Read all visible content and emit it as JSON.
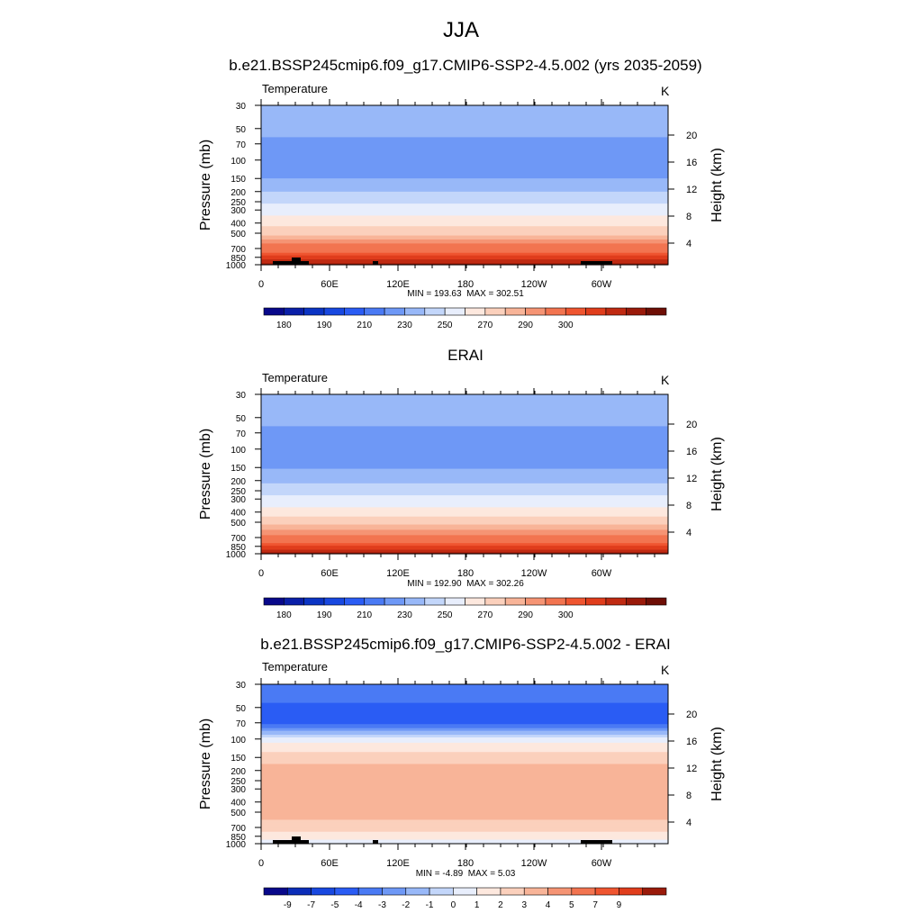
{
  "figure": {
    "title": "JJA"
  },
  "chart_data": [
    {
      "type": "heatmap",
      "title": "b.e21.BSSP245cmip6.f09_g17.CMIP6-SSP2-4.5.002 (yrs 2035-2059)",
      "variable": "Temperature",
      "units": "K",
      "xlabel": "",
      "ylabel": "Pressure (mb)",
      "y2label": "Height (km)",
      "x_ticks": [
        "0",
        "60E",
        "120E",
        "180",
        "120W",
        "60W"
      ],
      "y_ticks": [
        "30",
        "50",
        "70",
        "100",
        "150",
        "200",
        "250",
        "300",
        "400",
        "500",
        "700",
        "850",
        "1000"
      ],
      "y2_ticks": [
        "4",
        "8",
        "12",
        "16",
        "20"
      ],
      "y_scale": "log",
      "ylim": [
        1000,
        30
      ],
      "min_label": "MIN = 193.63",
      "max_label": "MAX = 302.51",
      "colorbar_labels": [
        "180",
        "190",
        "210",
        "230",
        "250",
        "270",
        "290",
        "300"
      ],
      "profile": {
        "pressure": [
          30,
          40,
          50,
          70,
          100,
          150,
          200,
          250,
          300,
          400,
          500,
          700,
          850,
          1000
        ],
        "value": [
          218,
          216,
          213,
          208,
          204,
          210,
          220,
          228,
          235,
          246,
          258,
          275,
          287,
          297
        ]
      },
      "terrain": true
    },
    {
      "type": "heatmap",
      "title": "ERAI",
      "variable": "Temperature",
      "units": "K",
      "xlabel": "",
      "ylabel": "Pressure (mb)",
      "y2label": "Height (km)",
      "x_ticks": [
        "0",
        "60E",
        "120E",
        "180",
        "120W",
        "60W"
      ],
      "y_ticks": [
        "30",
        "50",
        "70",
        "100",
        "150",
        "200",
        "250",
        "300",
        "400",
        "500",
        "700",
        "850",
        "1000"
      ],
      "y2_ticks": [
        "4",
        "8",
        "12",
        "16",
        "20"
      ],
      "y_scale": "log",
      "ylim": [
        1000,
        30
      ],
      "min_label": "MIN = 192.90",
      "max_label": "MAX = 302.26",
      "colorbar_labels": [
        "180",
        "190",
        "210",
        "230",
        "250",
        "270",
        "290",
        "300"
      ],
      "profile": {
        "pressure": [
          30,
          40,
          50,
          70,
          100,
          150,
          200,
          250,
          300,
          400,
          500,
          700,
          850,
          1000
        ],
        "value": [
          218,
          216,
          213,
          208,
          204,
          209,
          218,
          226,
          233,
          245,
          257,
          273,
          285,
          296
        ]
      },
      "terrain": false
    },
    {
      "type": "heatmap",
      "title": "b.e21.BSSP245cmip6.f09_g17.CMIP6-SSP2-4.5.002 - ERAI",
      "variable": "Temperature",
      "units": "K",
      "xlabel": "",
      "ylabel": "Pressure (mb)",
      "y2label": "Height (km)",
      "x_ticks": [
        "0",
        "60E",
        "120E",
        "180",
        "120W",
        "60W"
      ],
      "y_ticks": [
        "30",
        "50",
        "70",
        "100",
        "150",
        "200",
        "250",
        "300",
        "400",
        "500",
        "700",
        "850",
        "1000"
      ],
      "y2_ticks": [
        "4",
        "8",
        "12",
        "16",
        "20"
      ],
      "y_scale": "log",
      "ylim": [
        1000,
        30
      ],
      "min_label": "MIN =  -4.89",
      "max_label": "MAX =   5.03",
      "colorbar_labels": [
        "-9",
        "-7",
        "-5",
        "-4",
        "-3",
        "-2",
        "-1",
        "0",
        "1",
        "2",
        "3",
        "4",
        "5",
        "7",
        "9"
      ],
      "profile": {
        "pressure": [
          30,
          40,
          50,
          70,
          100,
          120,
          150,
          200,
          300,
          500,
          700,
          850,
          1000
        ],
        "value": [
          -3.5,
          -3.5,
          -4.5,
          -4.5,
          0.5,
          1.5,
          2.5,
          3.5,
          3.5,
          3.5,
          2.5,
          1.5,
          0.5
        ]
      },
      "terrain": true
    }
  ],
  "colors": {
    "abs_levels": [
      "#08088a",
      "#0a1fa8",
      "#0b34c4",
      "#1848e0",
      "#2a5cf4",
      "#4a7af4",
      "#6e98f6",
      "#98b8f8",
      "#c3d6fa",
      "#e8eefc",
      "#fde8de",
      "#fbd0bc",
      "#f8b498",
      "#f59474",
      "#f27450",
      "#ef5530",
      "#e03d1c",
      "#c02a12",
      "#9a1a0a",
      "#6e0e05"
    ],
    "diff_levels": [
      "#08088a",
      "#0b2db8",
      "#1848e0",
      "#2a5cf4",
      "#4a7af4",
      "#6e98f6",
      "#98b8f8",
      "#c3d6fa",
      "#e8eefc",
      "#fde8de",
      "#fbd0bc",
      "#f8b498",
      "#f59474",
      "#f27450",
      "#ef5530",
      "#e03d1c",
      "#9a1a0a"
    ],
    "terrain": "#000000"
  }
}
